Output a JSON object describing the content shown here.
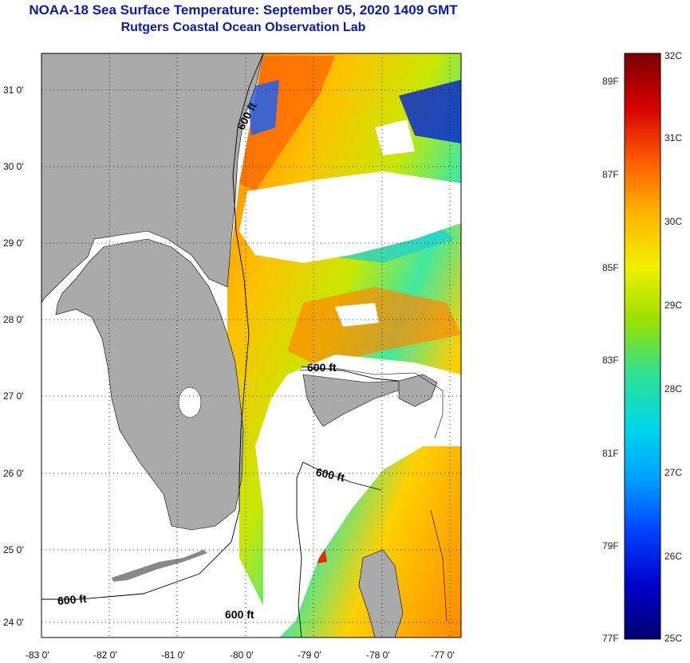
{
  "header": {
    "title_line1": "NOAA-18 Sea Surface Temperature:  September 05, 2020 1409 GMT",
    "title_line2": "Rutgers Coastal Ocean Observation Lab"
  },
  "map": {
    "lon_labels": [
      "-83 0'",
      "-82 0'",
      "-81 0'",
      "-80 0'",
      "-79 0'",
      "-78 0'",
      "-77 0'"
    ],
    "lat_labels": [
      "31 0'",
      "30 0'",
      "29 0'",
      "28 0'",
      "27 0'",
      "26 0'",
      "25 0'",
      "24 0'"
    ],
    "contour_labels": [
      "600 ft",
      "600 ft",
      "600 ft",
      "600 ft",
      "600 ft"
    ],
    "colors": {
      "land": "#aaaaaa",
      "cloud": "#ffffff",
      "frame": "#000000"
    }
  },
  "colorbar": {
    "celsius": [
      "32C",
      "31C",
      "30C",
      "29C",
      "28C",
      "27C",
      "26C",
      "25C"
    ],
    "fahrenheit": [
      "89F",
      "87F",
      "85F",
      "83F",
      "81F",
      "79F",
      "77F"
    ],
    "colors": [
      "#7a0000",
      "#d40000",
      "#ff5a00",
      "#ffb400",
      "#f0f000",
      "#9be000",
      "#30e090",
      "#00d8e8",
      "#00a0ff",
      "#0040ff",
      "#0000c8",
      "#000070"
    ]
  }
}
